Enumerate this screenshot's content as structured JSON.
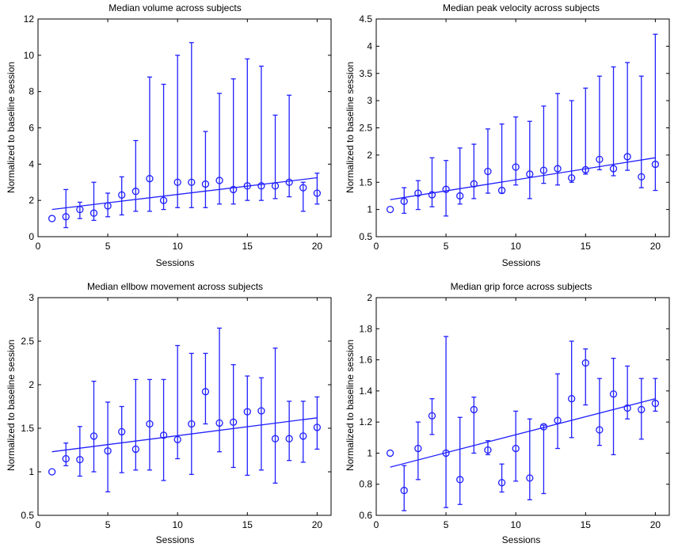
{
  "colors": {
    "series": "#2020ff",
    "axis": "#000000"
  },
  "chart_data": [
    {
      "type": "scatter",
      "title": "Median volume across subjects",
      "xlabel": "Sessions",
      "ylabel": "Normalized to baseline session",
      "xlim": [
        0,
        21
      ],
      "ylim": [
        0,
        12
      ],
      "xticks": [
        0,
        5,
        10,
        15,
        20
      ],
      "yticks": [
        0,
        2,
        4,
        6,
        8,
        10,
        12
      ],
      "x": [
        1,
        2,
        3,
        4,
        5,
        6,
        7,
        8,
        9,
        10,
        11,
        12,
        13,
        14,
        15,
        16,
        17,
        18,
        19,
        20
      ],
      "y": [
        1.0,
        1.1,
        1.5,
        1.3,
        1.7,
        2.3,
        2.5,
        3.2,
        2.0,
        3.0,
        3.0,
        2.9,
        3.1,
        2.6,
        2.8,
        2.8,
        2.8,
        3.0,
        2.7,
        2.4
      ],
      "low": [
        1.0,
        0.5,
        1.0,
        0.9,
        1.1,
        1.2,
        1.4,
        1.4,
        1.5,
        1.6,
        1.6,
        1.6,
        1.8,
        1.8,
        2.0,
        2.0,
        2.1,
        2.2,
        1.4,
        1.8
      ],
      "high": [
        1.0,
        2.6,
        1.9,
        3.0,
        2.4,
        3.3,
        5.3,
        8.8,
        8.4,
        10.0,
        10.7,
        5.8,
        7.9,
        8.7,
        9.8,
        9.4,
        6.7,
        7.8,
        3.0,
        3.5
      ],
      "fit": [
        1.5,
        3.25
      ]
    },
    {
      "type": "scatter",
      "title": "Median peak velocity across subjects",
      "xlabel": "Sessions",
      "ylabel": "Normalized to baseline session",
      "xlim": [
        0,
        21
      ],
      "ylim": [
        0.5,
        4.5
      ],
      "xticks": [
        0,
        5,
        10,
        15,
        20
      ],
      "yticks": [
        0.5,
        1,
        1.5,
        2,
        2.5,
        3,
        3.5,
        4,
        4.5
      ],
      "x": [
        1,
        2,
        3,
        4,
        5,
        6,
        7,
        8,
        9,
        10,
        11,
        12,
        13,
        14,
        15,
        16,
        17,
        18,
        19,
        20
      ],
      "y": [
        1.0,
        1.15,
        1.3,
        1.27,
        1.37,
        1.25,
        1.47,
        1.7,
        1.35,
        1.78,
        1.65,
        1.72,
        1.75,
        1.58,
        1.73,
        1.92,
        1.75,
        1.97,
        1.6,
        1.83
      ],
      "low": [
        1.0,
        0.93,
        1.0,
        1.05,
        0.88,
        1.1,
        1.2,
        1.3,
        1.3,
        1.45,
        1.2,
        1.48,
        1.45,
        1.5,
        1.65,
        1.73,
        1.62,
        1.72,
        1.4,
        1.35
      ],
      "high": [
        1.0,
        1.4,
        1.53,
        1.95,
        1.9,
        2.13,
        2.2,
        2.48,
        2.57,
        2.7,
        2.62,
        2.9,
        3.13,
        3.0,
        3.23,
        3.45,
        3.62,
        3.7,
        3.45,
        4.22
      ],
      "fit": [
        1.18,
        1.95
      ]
    },
    {
      "type": "scatter",
      "title": "Median ellbow movement across subjects",
      "xlabel": "Sessions",
      "ylabel": "Normalized to baseline session",
      "xlim": [
        0,
        21
      ],
      "ylim": [
        0.5,
        3
      ],
      "xticks": [
        0,
        5,
        10,
        15,
        20
      ],
      "yticks": [
        0.5,
        1,
        1.5,
        2,
        2.5,
        3
      ],
      "x": [
        1,
        2,
        3,
        4,
        5,
        6,
        7,
        8,
        9,
        10,
        11,
        12,
        13,
        14,
        15,
        16,
        17,
        18,
        19,
        20
      ],
      "y": [
        1.0,
        1.15,
        1.14,
        1.41,
        1.24,
        1.46,
        1.26,
        1.55,
        1.42,
        1.37,
        1.55,
        1.92,
        1.56,
        1.57,
        1.69,
        1.7,
        1.38,
        1.38,
        1.41,
        1.51
      ],
      "low": [
        1.0,
        1.07,
        0.95,
        1.0,
        0.77,
        0.99,
        1.02,
        1.02,
        0.9,
        1.15,
        0.97,
        1.55,
        1.23,
        1.05,
        0.96,
        1.02,
        0.87,
        1.13,
        1.11,
        1.26
      ],
      "high": [
        1.0,
        1.33,
        1.52,
        2.04,
        1.8,
        1.75,
        2.06,
        2.06,
        2.06,
        2.45,
        2.36,
        2.36,
        2.65,
        2.23,
        2.1,
        2.08,
        2.42,
        1.81,
        1.81,
        1.86
      ],
      "fit": [
        1.23,
        1.62
      ]
    },
    {
      "type": "scatter",
      "title": "Median grip force across subjects",
      "xlabel": "Sessions",
      "ylabel": "Normalized to baseline session",
      "xlim": [
        0,
        21
      ],
      "ylim": [
        0.6,
        2
      ],
      "xticks": [
        0,
        5,
        10,
        15,
        20
      ],
      "yticks": [
        0.6,
        0.8,
        1,
        1.2,
        1.4,
        1.6,
        1.8,
        2
      ],
      "x": [
        1,
        2,
        3,
        4,
        5,
        6,
        7,
        8,
        9,
        10,
        11,
        12,
        13,
        14,
        15,
        16,
        17,
        18,
        19,
        20
      ],
      "y": [
        1.0,
        0.76,
        1.03,
        1.24,
        1.0,
        0.83,
        1.28,
        1.02,
        0.81,
        1.03,
        0.84,
        1.17,
        1.21,
        1.35,
        1.58,
        1.15,
        1.38,
        1.29,
        1.28,
        1.32
      ],
      "low": [
        1.0,
        0.63,
        0.83,
        1.12,
        0.65,
        0.67,
        1.0,
        0.99,
        0.75,
        0.82,
        0.7,
        0.74,
        1.03,
        1.1,
        1.31,
        1.05,
        0.99,
        1.22,
        1.09,
        1.27
      ],
      "high": [
        1.0,
        0.92,
        1.2,
        1.35,
        1.75,
        1.23,
        1.36,
        1.08,
        0.93,
        1.27,
        1.22,
        1.18,
        1.51,
        1.72,
        1.67,
        1.48,
        1.61,
        1.56,
        1.48,
        1.48
      ],
      "fit": [
        0.91,
        1.35
      ]
    }
  ]
}
